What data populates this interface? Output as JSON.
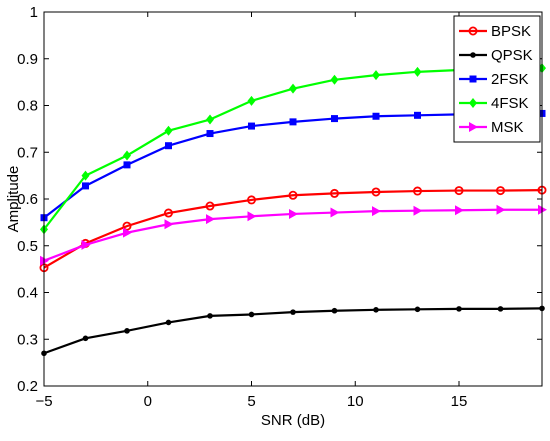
{
  "chart_data": {
    "type": "line",
    "xlabel": "SNR (dB)",
    "ylabel": "Amplitude",
    "xlim": [
      -5,
      19
    ],
    "ylim": [
      0.2,
      1.0
    ],
    "xticks": [
      -5,
      0,
      5,
      10,
      15
    ],
    "yticks": [
      0.2,
      0.3,
      0.4,
      0.5,
      0.6,
      0.7,
      0.8,
      0.9,
      1.0
    ],
    "xtick_labels": [
      "−5",
      "0",
      "5",
      "10",
      "15"
    ],
    "ytick_labels": [
      "0.2",
      "0.3",
      "0.4",
      "0.5",
      "0.6",
      "0.7",
      "0.8",
      "0.9",
      "1"
    ],
    "grid": false,
    "legend_position": "top-right",
    "x": [
      -5,
      -3,
      -1,
      1,
      3,
      5,
      7,
      9,
      11,
      13,
      15,
      17,
      19
    ],
    "series": [
      {
        "name": "BPSK",
        "color": "#ff0000",
        "marker": "circle",
        "values": [
          0.453,
          0.505,
          0.542,
          0.57,
          0.585,
          0.598,
          0.608,
          0.612,
          0.615,
          0.617,
          0.618,
          0.618,
          0.619
        ]
      },
      {
        "name": "QPSK",
        "color": "#000000",
        "marker": "dot",
        "values": [
          0.27,
          0.302,
          0.318,
          0.336,
          0.35,
          0.353,
          0.358,
          0.361,
          0.363,
          0.364,
          0.365,
          0.365,
          0.366
        ]
      },
      {
        "name": "2FSK",
        "color": "#0000ff",
        "marker": "square",
        "values": [
          0.56,
          0.628,
          0.673,
          0.714,
          0.74,
          0.756,
          0.765,
          0.772,
          0.777,
          0.779,
          0.781,
          0.782,
          0.783
        ]
      },
      {
        "name": "4FSK",
        "color": "#00ff00",
        "marker": "diamond",
        "values": [
          0.535,
          0.65,
          0.693,
          0.746,
          0.77,
          0.81,
          0.836,
          0.855,
          0.865,
          0.872,
          0.876,
          0.878,
          0.88
        ]
      },
      {
        "name": "MSK",
        "color": "#ff00ff",
        "marker": "triangle-right",
        "values": [
          0.468,
          0.502,
          0.528,
          0.546,
          0.557,
          0.563,
          0.568,
          0.571,
          0.574,
          0.575,
          0.576,
          0.577,
          0.577
        ]
      }
    ]
  }
}
